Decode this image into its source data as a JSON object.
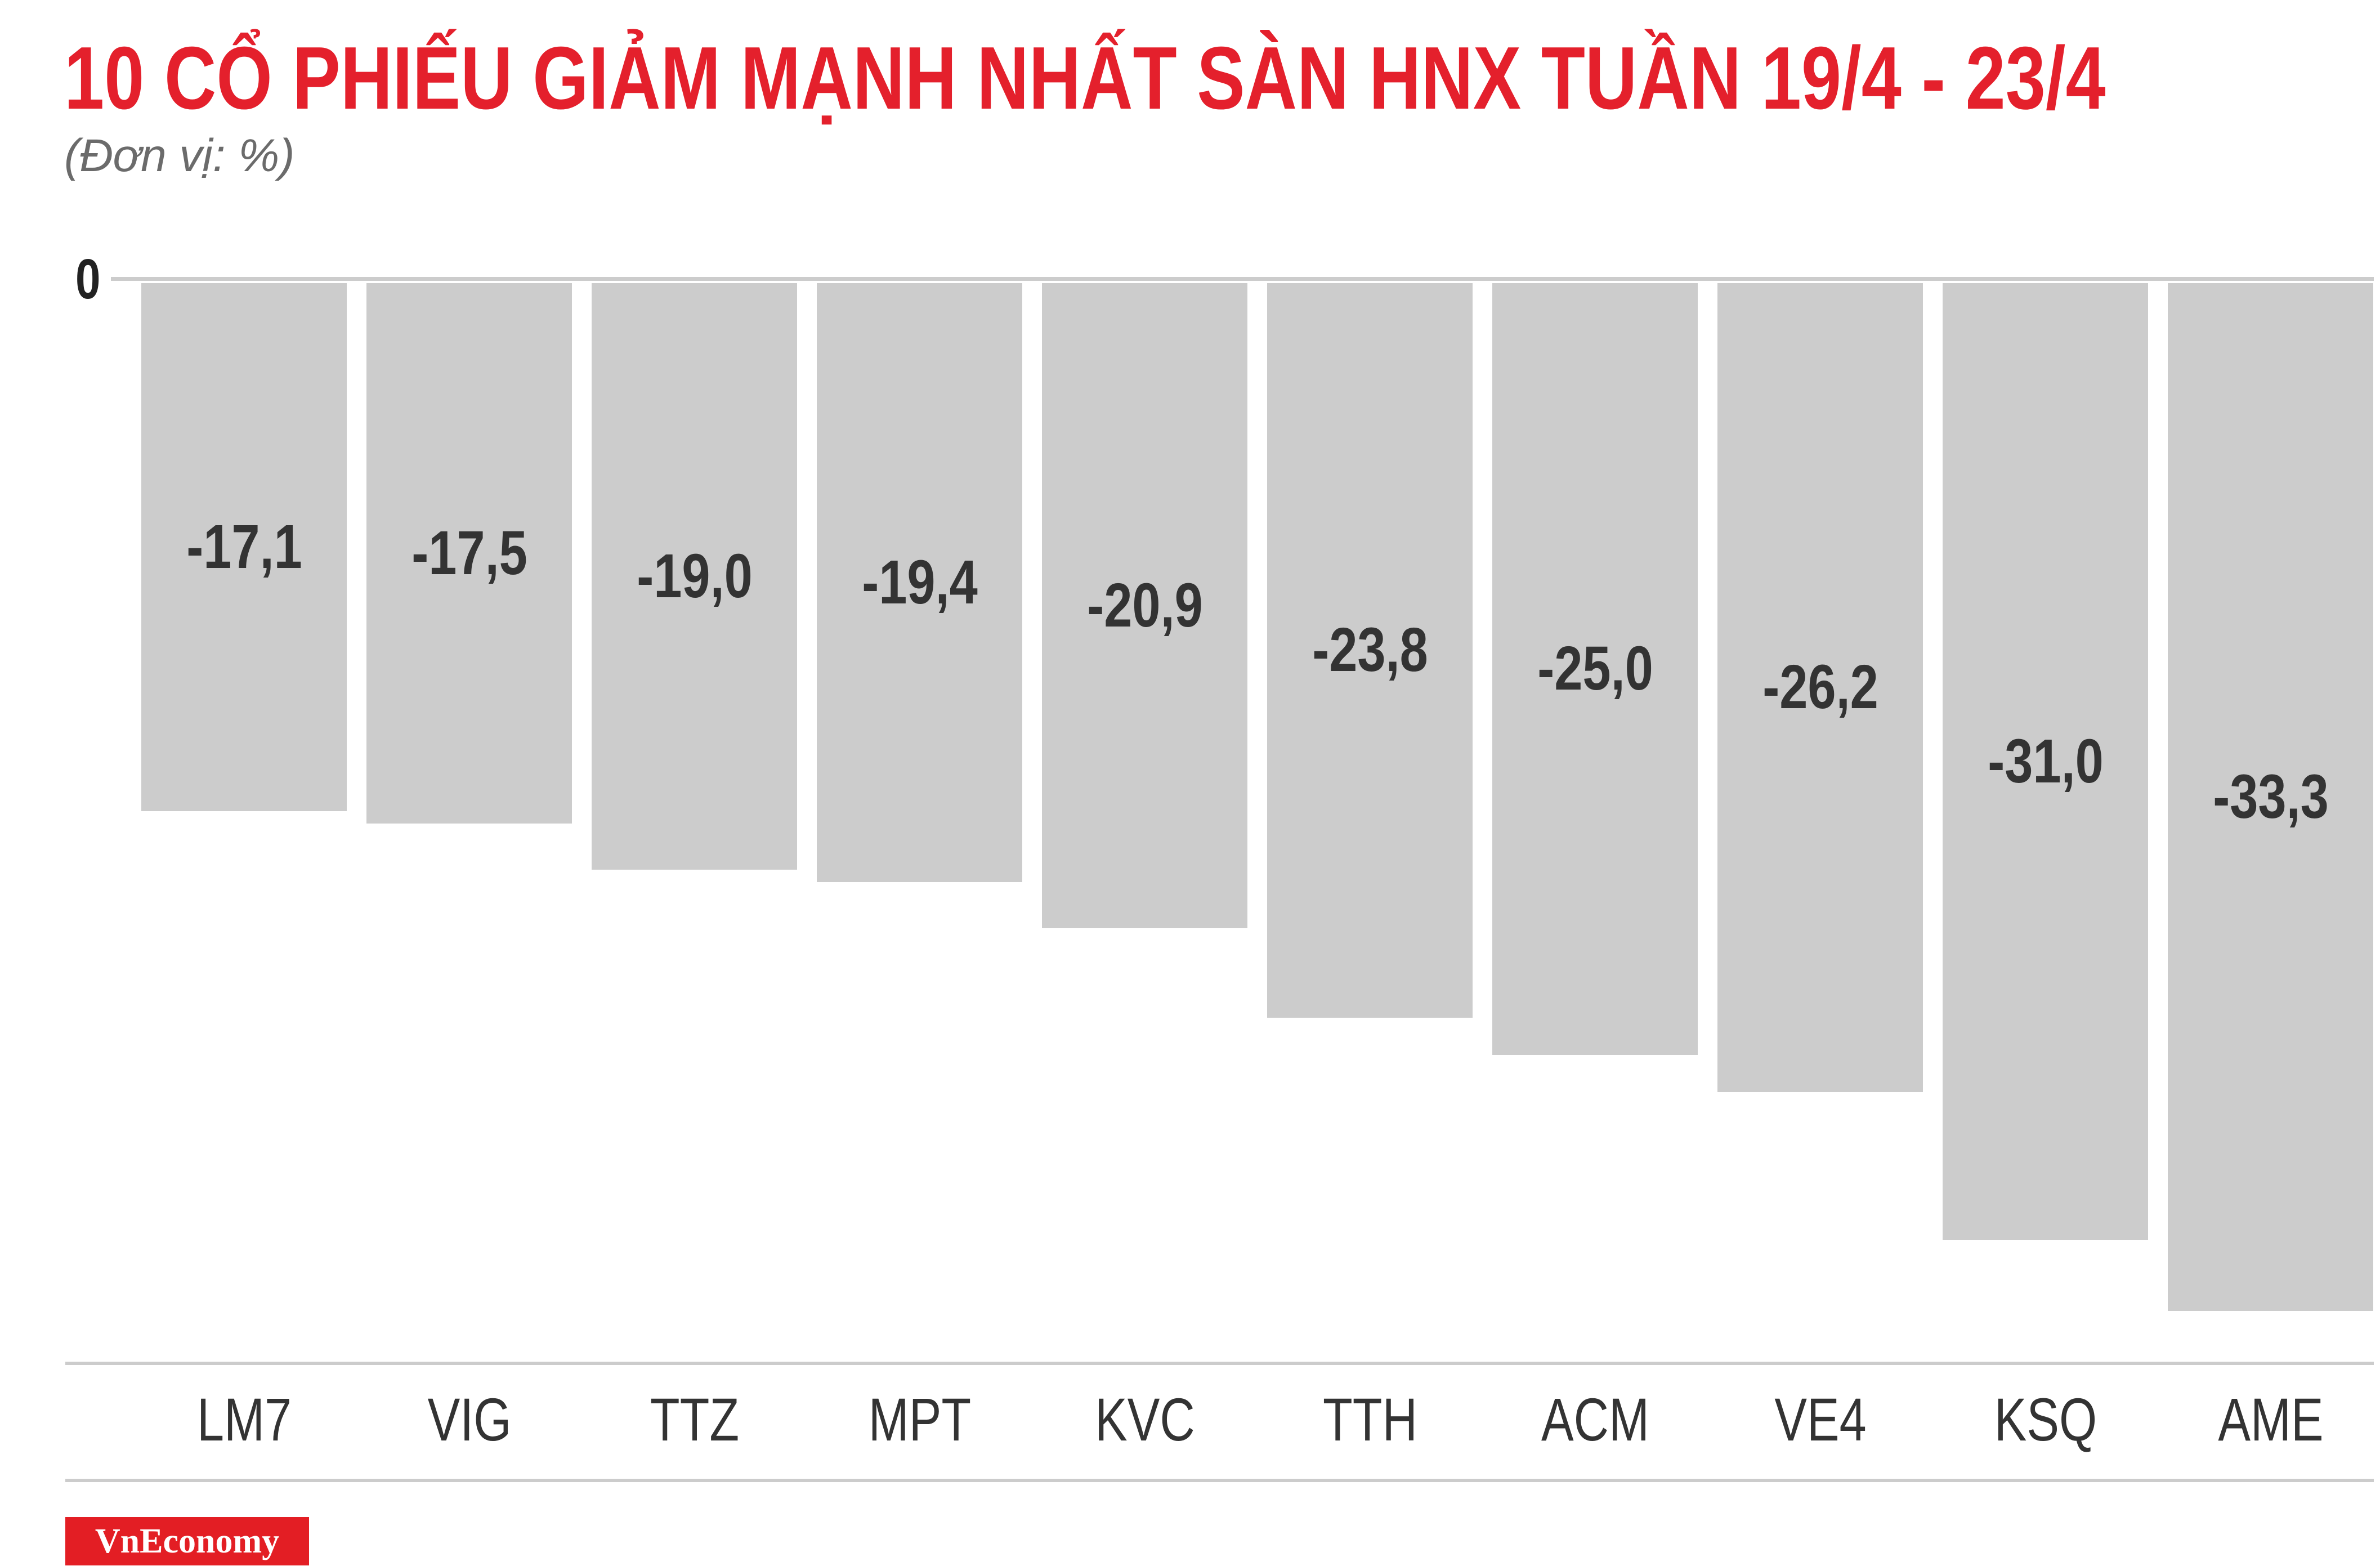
{
  "colors": {
    "title": "#e4202c",
    "subtitle": "#6b6b6b",
    "bar": "#cccccc",
    "axis_line": "#cccccc",
    "label_text": "#333333",
    "logo_background": "#e31e24",
    "logo_text": "#ffffff"
  },
  "logo": {
    "text": "VnEconomy"
  },
  "chart_data": {
    "type": "bar",
    "title": "10 CỔ PHIẾU GIẢM MẠNH NHẤT SÀN HNX TUẦN 19/4 - 23/4",
    "subtitle": "(Đơn vị: %)",
    "categories": [
      "LM7",
      "VIG",
      "TTZ",
      "MPT",
      "KVC",
      "TTH",
      "ACM",
      "VE4",
      "KSQ",
      "AME"
    ],
    "values": [
      -17.1,
      -17.5,
      -19.0,
      -19.4,
      -20.9,
      -23.8,
      -25.0,
      -26.2,
      -31.0,
      -33.3
    ],
    "value_labels": [
      "-17,1",
      "-17,5",
      "-19,0",
      "-19,4",
      "-20,9",
      "-23,8",
      "-25,0",
      "-26,2",
      "-31,0",
      "-33,3"
    ],
    "y_tick_labels": [
      "0"
    ],
    "ylim": [
      -35,
      0
    ],
    "grid": false
  }
}
